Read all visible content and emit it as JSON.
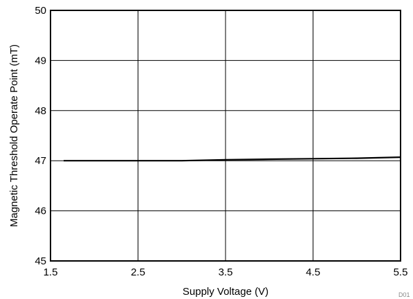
{
  "chart_data": {
    "type": "line",
    "title": "",
    "xlabel": "Supply Voltage (V)",
    "ylabel": "Magnetic Threshold Operate Point (mT)",
    "xlim": [
      1.5,
      5.5
    ],
    "ylim": [
      45,
      50
    ],
    "xticks": [
      "1.5",
      "2.5",
      "3.5",
      "4.5",
      "5.5"
    ],
    "yticks": [
      "45",
      "46",
      "47",
      "48",
      "49",
      "50"
    ],
    "grid": true,
    "series": [
      {
        "x": [
          1.65,
          2.5,
          3.0,
          3.5,
          4.0,
          4.5,
          5.0,
          5.5
        ],
        "y": [
          47.0,
          47.0,
          47.0,
          47.02,
          47.03,
          47.04,
          47.05,
          47.07
        ],
        "color": "#000000"
      }
    ],
    "figure_id": "D01"
  }
}
